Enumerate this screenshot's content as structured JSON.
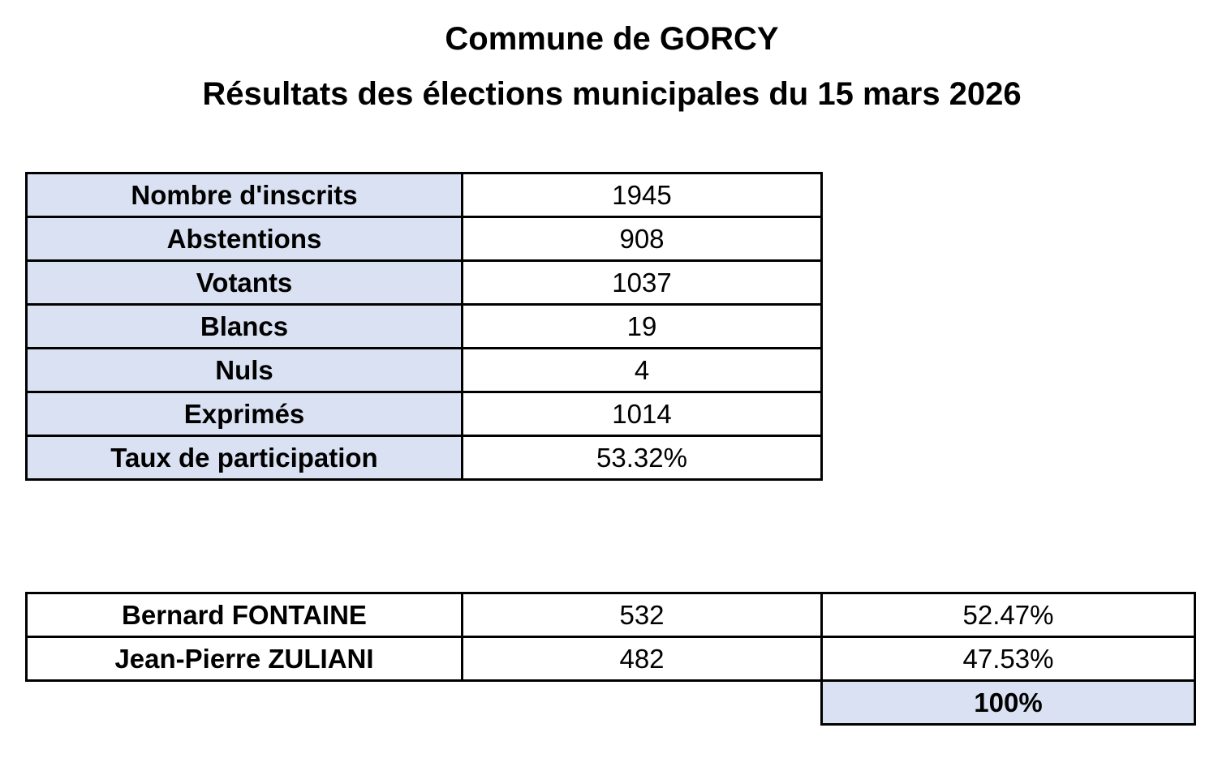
{
  "header": {
    "title": "Commune de GORCY",
    "subtitle": "Résultats des élections municipales du 15 mars 2026"
  },
  "summary_table": {
    "rows": [
      [
        "Nombre d'inscrits",
        "1945"
      ],
      [
        "Abstentions",
        "908"
      ],
      [
        "Votants",
        "1037"
      ],
      [
        "Blancs",
        "19"
      ],
      [
        "Nuls",
        "4"
      ],
      [
        "Exprimés",
        "1014"
      ],
      [
        "Taux de participation",
        "53.32%"
      ]
    ]
  },
  "results_table": {
    "rows": [
      [
        "Bernard FONTAINE",
        "532",
        "52.47%"
      ],
      [
        "Jean-Pierre ZULIANI",
        "482",
        "47.53%"
      ]
    ],
    "total": "100%"
  }
}
